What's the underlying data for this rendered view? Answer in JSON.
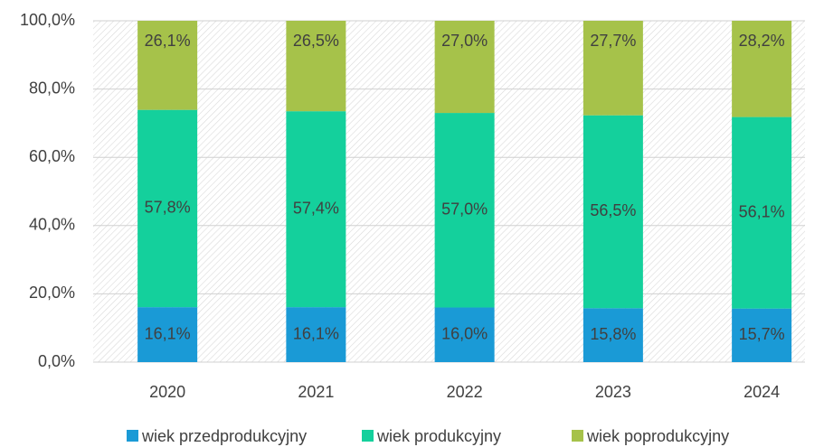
{
  "chart_data": {
    "type": "stacked_bar",
    "categories": [
      "2020",
      "2021",
      "2022",
      "2023",
      "2024"
    ],
    "series": [
      {
        "name": "wiek przedprodukcyjny",
        "color": "#1a9ad6",
        "values": [
          16.1,
          16.1,
          16.0,
          15.8,
          15.7
        ],
        "value_labels": [
          "16,1%",
          "16,1%",
          "16,0%",
          "15,8%",
          "15,7%"
        ]
      },
      {
        "name": "wiek produkcyjny",
        "color": "#14d09c",
        "values": [
          57.8,
          57.4,
          57.0,
          56.5,
          56.1
        ],
        "value_labels": [
          "57,8%",
          "57,4%",
          "57,0%",
          "56,5%",
          "56,1%"
        ]
      },
      {
        "name": "wiek poprodukcyjny",
        "color": "#a6c24a",
        "values": [
          26.1,
          26.5,
          27.0,
          27.7,
          28.2
        ],
        "value_labels": [
          "26,1%",
          "26,5%",
          "27,0%",
          "27,7%",
          "28,2%"
        ]
      }
    ],
    "ylim": [
      0,
      100
    ],
    "yticks": [
      {
        "value": 0,
        "label": "0,0%"
      },
      {
        "value": 20,
        "label": "20,0%"
      },
      {
        "value": 40,
        "label": "40,0%"
      },
      {
        "value": 60,
        "label": "60,0%"
      },
      {
        "value": 80,
        "label": "80,0%"
      },
      {
        "value": 100,
        "label": "100,0%"
      }
    ],
    "grid": true,
    "legend": "bottom"
  }
}
